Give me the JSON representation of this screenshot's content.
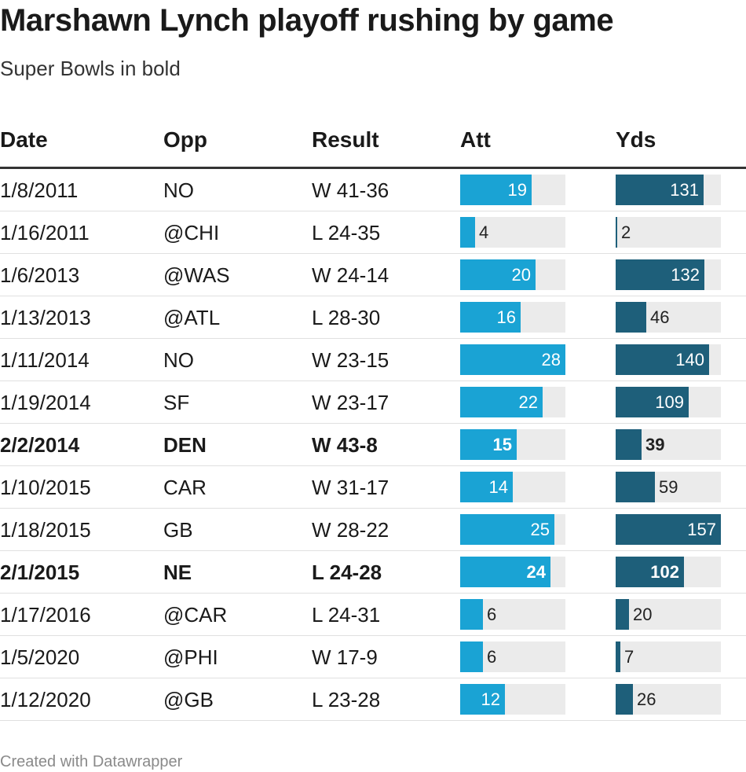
{
  "title": "Marshawn Lynch playoff rushing by game",
  "subtitle": "Super Bowls in bold",
  "footer": "Created with Datawrapper",
  "colors": {
    "att_bar": "#1aa3d4",
    "yds_bar": "#1e5f7a",
    "track": "#ebebeb"
  },
  "chart_data": {
    "type": "table",
    "title": "Marshawn Lynch playoff rushing by game",
    "subtitle": "Super Bowls in bold",
    "columns": [
      "Date",
      "Opp",
      "Result",
      "Att",
      "Yds"
    ],
    "att_max": 28,
    "yds_max": 157,
    "rows": [
      {
        "date": "1/8/2011",
        "opp": "NO",
        "result": "W 41-36",
        "att": 19,
        "yds": 131,
        "super_bowl": false
      },
      {
        "date": "1/16/2011",
        "opp": "@CHI",
        "result": "L 24-35",
        "att": 4,
        "yds": 2,
        "super_bowl": false
      },
      {
        "date": "1/6/2013",
        "opp": "@WAS",
        "result": "W 24-14",
        "att": 20,
        "yds": 132,
        "super_bowl": false
      },
      {
        "date": "1/13/2013",
        "opp": "@ATL",
        "result": "L 28-30",
        "att": 16,
        "yds": 46,
        "super_bowl": false
      },
      {
        "date": "1/11/2014",
        "opp": "NO",
        "result": "W 23-15",
        "att": 28,
        "yds": 140,
        "super_bowl": false
      },
      {
        "date": "1/19/2014",
        "opp": "SF",
        "result": "W 23-17",
        "att": 22,
        "yds": 109,
        "super_bowl": false
      },
      {
        "date": "2/2/2014",
        "opp": "DEN",
        "result": "W 43-8",
        "att": 15,
        "yds": 39,
        "super_bowl": true
      },
      {
        "date": "1/10/2015",
        "opp": "CAR",
        "result": "W 31-17",
        "att": 14,
        "yds": 59,
        "super_bowl": false
      },
      {
        "date": "1/18/2015",
        "opp": "GB",
        "result": "W 28-22",
        "att": 25,
        "yds": 157,
        "super_bowl": false
      },
      {
        "date": "2/1/2015",
        "opp": "NE",
        "result": "L 24-28",
        "att": 24,
        "yds": 102,
        "super_bowl": true
      },
      {
        "date": "1/17/2016",
        "opp": "@CAR",
        "result": "L 24-31",
        "att": 6,
        "yds": 20,
        "super_bowl": false
      },
      {
        "date": "1/5/2020",
        "opp": "@PHI",
        "result": "W 17-9",
        "att": 6,
        "yds": 7,
        "super_bowl": false
      },
      {
        "date": "1/12/2020",
        "opp": "@GB",
        "result": "L 23-28",
        "att": 12,
        "yds": 26,
        "super_bowl": false
      }
    ]
  }
}
